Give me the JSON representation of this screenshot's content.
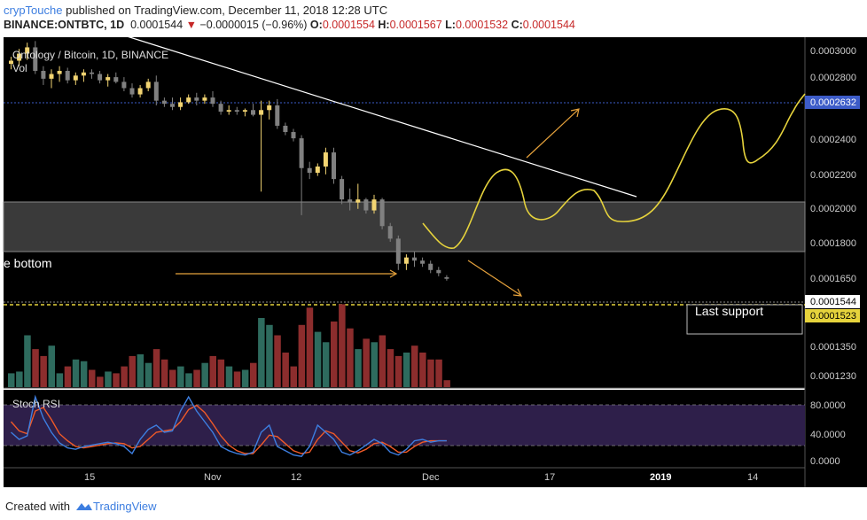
{
  "header": {
    "publisher": "crypTouche",
    "published_text": "published on TradingView.com, December 11, 2018 12:28 UTC",
    "symbol": "BINANCE:ONTBTC, 1D",
    "last": "0.0001544",
    "change": "−0.0000015 (−0.96%)",
    "o_label": "O:",
    "o_val": "0.0001554",
    "h_label": "H:",
    "h_val": "0.0001567",
    "l_label": "L:",
    "l_val": "0.0001532",
    "c_label": "C:",
    "c_val": "0.0001544"
  },
  "footer": {
    "created_with": "Created with",
    "brand": "TradingView"
  },
  "colors": {
    "background": "#000000",
    "up": "#f2d472",
    "down": "#808080",
    "vol_up": "#2e6b5e",
    "vol_down": "#8c2d2d",
    "annotation": "#e6d33c",
    "rsi_k": "#3d7ee0",
    "rsi_d": "#f05a28",
    "rsi_band": "#2e1f4a"
  },
  "chart_data": {
    "type": "candlestick",
    "title": "Ontology / Bitcoin, 1D, BINANCE",
    "volume_label": "Vol",
    "rsi_label": "Stoch RSI",
    "price_ticks": [
      "0.0003000",
      "0.0002800",
      "0.0002632",
      "0.0002400",
      "0.0002200",
      "0.0002000",
      "0.0001800",
      "0.0001650",
      "0.0001544",
      "0.0001523",
      "0.0001350",
      "0.0001230"
    ],
    "rsi_ticks": [
      "80.0000",
      "40.0000",
      "0.0000"
    ],
    "x_ticks": [
      "15",
      "Nov",
      "12",
      "Dec",
      "17",
      "2019",
      "14"
    ],
    "last_price_label": "0.0001544",
    "support_price_label": "0.0001523",
    "resistance_price_label": "0.0002632",
    "annotations": {
      "bottom_text": "e bottom",
      "support_text": "Last support"
    },
    "ohlc_note": "approximate daily candles, price x 1e-7 BTC",
    "candles": [
      [
        2915,
        2960,
        2880,
        2935
      ],
      [
        2935,
        3010,
        2900,
        2980
      ],
      [
        2980,
        3050,
        2940,
        3020
      ],
      [
        3020,
        3060,
        2850,
        2870
      ],
      [
        2870,
        2900,
        2780,
        2820
      ],
      [
        2820,
        2880,
        2760,
        2850
      ],
      [
        2850,
        2900,
        2800,
        2870
      ],
      [
        2870,
        2890,
        2790,
        2810
      ],
      [
        2810,
        2860,
        2780,
        2840
      ],
      [
        2840,
        2880,
        2800,
        2860
      ],
      [
        2860,
        2880,
        2820,
        2850
      ],
      [
        2850,
        2870,
        2790,
        2810
      ],
      [
        2810,
        2850,
        2770,
        2830
      ],
      [
        2830,
        2860,
        2790,
        2800
      ],
      [
        2800,
        2830,
        2740,
        2760
      ],
      [
        2760,
        2790,
        2700,
        2720
      ],
      [
        2720,
        2780,
        2700,
        2760
      ],
      [
        2760,
        2820,
        2740,
        2800
      ],
      [
        2800,
        2840,
        2650,
        2680
      ],
      [
        2680,
        2700,
        2640,
        2660
      ],
      [
        2660,
        2700,
        2620,
        2640
      ],
      [
        2640,
        2700,
        2620,
        2670
      ],
      [
        2670,
        2720,
        2660,
        2700
      ],
      [
        2700,
        2730,
        2650,
        2680
      ],
      [
        2680,
        2720,
        2660,
        2700
      ],
      [
        2700,
        2740,
        2640,
        2660
      ],
      [
        2660,
        2680,
        2590,
        2610
      ],
      [
        2610,
        2650,
        2590,
        2620
      ],
      [
        2620,
        2640,
        2590,
        2610
      ],
      [
        2610,
        2630,
        2580,
        2620
      ],
      [
        2620,
        2660,
        2580,
        2590
      ],
      [
        2590,
        2680,
        2100,
        2620
      ],
      [
        2620,
        2680,
        2560,
        2650
      ],
      [
        2650,
        2690,
        2500,
        2520
      ],
      [
        2520,
        2540,
        2460,
        2480
      ],
      [
        2480,
        2500,
        2420,
        2440
      ],
      [
        2440,
        2460,
        1950,
        2250
      ],
      [
        2250,
        2290,
        2180,
        2220
      ],
      [
        2220,
        2280,
        2200,
        2260
      ],
      [
        2260,
        2380,
        2210,
        2350
      ],
      [
        2350,
        2380,
        2150,
        2180
      ],
      [
        2180,
        2200,
        2020,
        2050
      ],
      [
        2050,
        2120,
        1980,
        2030
      ],
      [
        2030,
        2150,
        1990,
        2050
      ],
      [
        2050,
        2060,
        1960,
        1980
      ],
      [
        1980,
        2080,
        1960,
        2050
      ],
      [
        2050,
        2060,
        1860,
        1880
      ],
      [
        1880,
        1900,
        1780,
        1800
      ],
      [
        1800,
        1820,
        1600,
        1640
      ],
      [
        1640,
        1700,
        1600,
        1680
      ],
      [
        1680,
        1720,
        1620,
        1660
      ],
      [
        1660,
        1680,
        1620,
        1640
      ],
      [
        1640,
        1660,
        1580,
        1600
      ],
      [
        1600,
        1620,
        1560,
        1580
      ],
      [
        1554,
        1567,
        1532,
        1544
      ]
    ],
    "volume": [
      8,
      9,
      30,
      22,
      18,
      24,
      8,
      12,
      16,
      15,
      10,
      6,
      9,
      8,
      12,
      18,
      19,
      14,
      22,
      16,
      10,
      12,
      8,
      10,
      14,
      18,
      16,
      12,
      9,
      10,
      14,
      40,
      36,
      30,
      20,
      12,
      36,
      46,
      32,
      26,
      38,
      48,
      34,
      22,
      28,
      26,
      30,
      22,
      18,
      20,
      24,
      20,
      16,
      16,
      4
    ],
    "stoch_k": [
      40,
      30,
      35,
      90,
      60,
      40,
      25,
      18,
      16,
      20,
      22,
      24,
      26,
      24,
      20,
      10,
      30,
      44,
      50,
      40,
      42,
      70,
      90,
      70,
      55,
      40,
      20,
      14,
      10,
      8,
      12,
      40,
      50,
      20,
      14,
      8,
      6,
      20,
      50,
      40,
      30,
      12,
      8,
      14,
      22,
      30,
      24,
      12,
      8,
      16,
      28,
      30,
      26,
      28,
      28
    ],
    "stoch_d": [
      55,
      42,
      38,
      70,
      75,
      58,
      38,
      28,
      20,
      18,
      20,
      22,
      24,
      25,
      24,
      18,
      20,
      30,
      40,
      42,
      44,
      55,
      72,
      78,
      68,
      52,
      35,
      22,
      14,
      10,
      10,
      22,
      36,
      34,
      24,
      14,
      10,
      12,
      30,
      42,
      38,
      26,
      14,
      11,
      16,
      24,
      26,
      20,
      12,
      12,
      20,
      26,
      28,
      28,
      28
    ]
  }
}
